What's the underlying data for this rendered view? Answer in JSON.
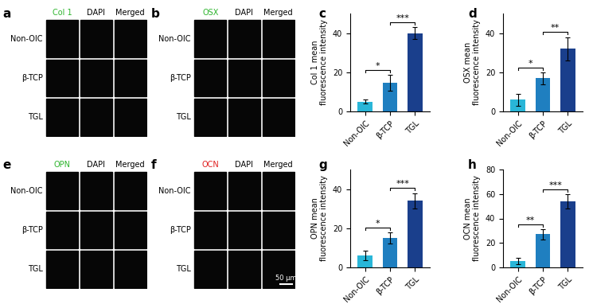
{
  "image_panels": [
    {
      "panel": "a",
      "channels": [
        "Col 1",
        "DAPI",
        "Merged"
      ],
      "colors": [
        "#2fb52f",
        "#000000",
        "#000000"
      ],
      "rows": [
        "Non-OIC",
        "β-TCP",
        "TGL"
      ]
    },
    {
      "panel": "b",
      "channels": [
        "OSX",
        "DAPI",
        "Merged"
      ],
      "colors": [
        "#2fb52f",
        "#000000",
        "#000000"
      ],
      "rows": [
        "Non-OIC",
        "β-TCP",
        "TGL"
      ]
    },
    {
      "panel": "e",
      "channels": [
        "OPN",
        "DAPI",
        "Merged"
      ],
      "colors": [
        "#2fb52f",
        "#000000",
        "#000000"
      ],
      "rows": [
        "Non-OIC",
        "β-TCP",
        "TGL"
      ]
    },
    {
      "panel": "f",
      "channels": [
        "OCN",
        "DAPI",
        "Merged"
      ],
      "colors": [
        "#e02020",
        "#000000",
        "#000000"
      ],
      "rows": [
        "Non-OIC",
        "β-TCP",
        "TGL"
      ],
      "scale_bar": "50 μm"
    }
  ],
  "chart_data": [
    {
      "type": "bar",
      "panel": "c",
      "y_label": "Col 1 mean\nfluorescence intensity",
      "categories": [
        "Non-OIC",
        "β-TCP",
        "TGL"
      ],
      "values": [
        5,
        14.5,
        40
      ],
      "errors": [
        1,
        4,
        3
      ],
      "colors": [
        "#29b6d8",
        "#1f7fc0",
        "#1a3f8c"
      ],
      "ylim": [
        0,
        50
      ],
      "yticks": [
        0,
        20,
        40
      ],
      "grid": false,
      "annotations": [
        {
          "text": "*",
          "from": "Non-OIC",
          "to": "β-TCP"
        },
        {
          "text": "***",
          "from": "β-TCP",
          "to": "TGL"
        }
      ]
    },
    {
      "type": "bar",
      "panel": "d",
      "y_label": "OSX mean\nfluorescence intensity",
      "categories": [
        "Non-OIC",
        "β-TCP",
        "TGL"
      ],
      "values": [
        6,
        17,
        32
      ],
      "errors": [
        3,
        3,
        6
      ],
      "colors": [
        "#29b6d8",
        "#1f7fc0",
        "#1a3f8c"
      ],
      "ylim": [
        0,
        50
      ],
      "yticks": [
        0,
        20,
        40
      ],
      "grid": false,
      "annotations": [
        {
          "text": "*",
          "from": "Non-OIC",
          "to": "β-TCP"
        },
        {
          "text": "**",
          "from": "β-TCP",
          "to": "TGL"
        }
      ]
    },
    {
      "type": "bar",
      "panel": "g",
      "y_label": "OPN mean\nfluorescence intensity",
      "categories": [
        "Non-OIC",
        "β-TCP",
        "TGL"
      ],
      "values": [
        6,
        15,
        34
      ],
      "errors": [
        2.5,
        3,
        4
      ],
      "colors": [
        "#29b6d8",
        "#1f7fc0",
        "#1a3f8c"
      ],
      "ylim": [
        0,
        50
      ],
      "yticks": [
        0,
        20,
        40
      ],
      "grid": false,
      "annotations": [
        {
          "text": "*",
          "from": "Non-OIC",
          "to": "β-TCP"
        },
        {
          "text": "***",
          "from": "β-TCP",
          "to": "TGL"
        }
      ]
    },
    {
      "type": "bar",
      "panel": "h",
      "y_label": "OCN mean\nfluorescence intensity",
      "categories": [
        "Non-OIC",
        "β-TCP",
        "TGL"
      ],
      "values": [
        5,
        27,
        54
      ],
      "errors": [
        2.5,
        4,
        6
      ],
      "colors": [
        "#29b6d8",
        "#1f7fc0",
        "#1a3f8c"
      ],
      "ylim": [
        0,
        80
      ],
      "yticks": [
        0,
        20,
        40,
        60,
        80
      ],
      "grid": false,
      "annotations": [
        {
          "text": "**",
          "from": "Non-OIC",
          "to": "β-TCP"
        },
        {
          "text": "***",
          "from": "β-TCP",
          "to": "TGL"
        }
      ]
    }
  ]
}
